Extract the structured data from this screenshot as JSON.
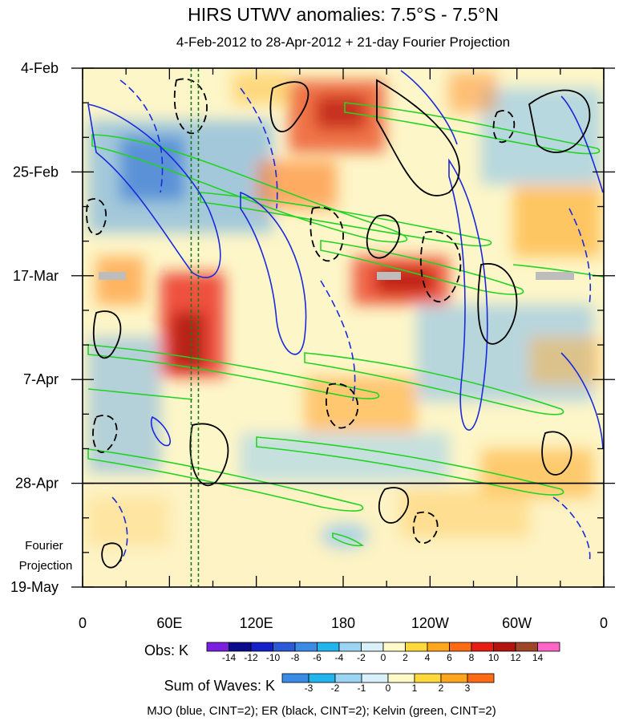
{
  "chart_data": {
    "type": "heatmap",
    "title": "HIRS UTWV anomalies: 7.5°S - 7.5°N",
    "subtitle": "4-Feb-2012 to 28-Apr-2012 + 21-day Fourier Projection",
    "x_tick_labels": [
      "0",
      "60E",
      "120E",
      "180",
      "120W",
      "60W",
      "0"
    ],
    "x_ticks_deg_east": [
      0,
      60,
      120,
      180,
      240,
      300,
      360
    ],
    "y_tick_labels": [
      "4-Feb",
      "25-Feb",
      "17-Mar",
      "7-Apr",
      "28-Apr",
      "19-May"
    ],
    "y_ticks_day": [
      0,
      21,
      42,
      63,
      84,
      105
    ],
    "fourier_label": "Fourier Projection",
    "obs_end_day": 84,
    "colorbars": {
      "obs": {
        "label": "Obs: K",
        "levels": [
          "-14",
          "-12",
          "-10",
          "-8",
          "-6",
          "-4",
          "-2",
          "0",
          "2",
          "4",
          "6",
          "8",
          "10",
          "12",
          "14"
        ],
        "colors": [
          "#7a1ee0",
          "#0a0a8c",
          "#1420c8",
          "#2a5ad6",
          "#3a8ae6",
          "#22b4ec",
          "#9cd4f4",
          "#d8f0fa",
          "#fffac8",
          "#ffd83c",
          "#ffa61e",
          "#ff6a14",
          "#e81e14",
          "#b4140e",
          "#a04628",
          "#ff64c8"
        ]
      },
      "waves": {
        "label": "Sum of Waves: K",
        "levels": [
          "-3",
          "-2",
          "-1",
          "0",
          "1",
          "2",
          "3"
        ],
        "colors": [
          "#3a8ae6",
          "#22b4ec",
          "#9cd4f4",
          "#d8f0fa",
          "#fffac8",
          "#ffd83c",
          "#ffa61e",
          "#ff6a14"
        ]
      }
    },
    "contour_series": [
      {
        "name": "MJO",
        "color": "#1a2adc"
      },
      {
        "name": "ER",
        "color": "#000000"
      },
      {
        "name": "Kelvin",
        "color": "#22d422"
      }
    ],
    "reference_longitudes_deg_east": [
      75,
      80
    ],
    "footnote": "MJO (blue, CINT=2); ER (black, CINT=2); Kelvin (green, CINT=2)"
  }
}
